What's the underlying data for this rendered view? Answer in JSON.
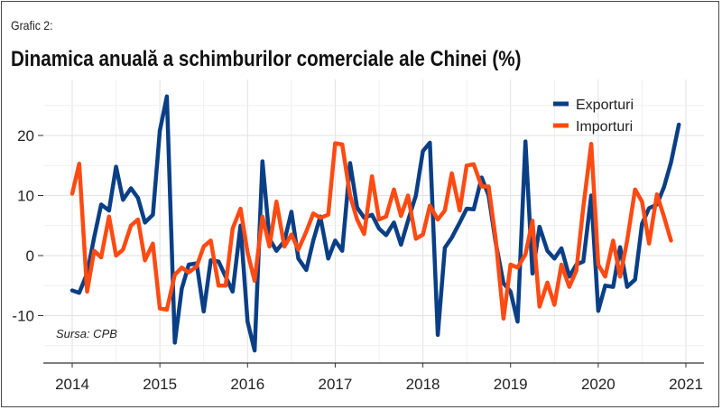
{
  "header": {
    "label": "Grafic 2:",
    "title": "Dinamica anuală a schimburilor comerciale ale Chinei (%)"
  },
  "source_note": "Sursa: CPB",
  "colors": {
    "exports": "#0a3f86",
    "imports": "#ff4a12",
    "grid": "#e2e2e2",
    "axis": "#333333"
  },
  "chart_data": {
    "type": "line",
    "title": "Dinamica anuală a schimburilor comerciale ale Chinei (%)",
    "xlabel": "",
    "ylabel": "",
    "xlim": [
      2014,
      2021
    ],
    "ylim": [
      -18,
      28
    ],
    "x_ticks": [
      2014,
      2015,
      2016,
      2017,
      2018,
      2019,
      2020,
      2021
    ],
    "y_ticks": [
      -10,
      0,
      10,
      20
    ],
    "grid": true,
    "legend_position": "top-right",
    "series": [
      {
        "name": "Exporturi",
        "color": "#0a3f86",
        "points": [
          [
            2014.0,
            -5.8
          ],
          [
            2014.08,
            -6.2
          ],
          [
            2014.17,
            -3.0
          ],
          [
            2014.25,
            3.0
          ],
          [
            2014.33,
            8.5
          ],
          [
            2014.42,
            7.5
          ],
          [
            2014.5,
            14.8
          ],
          [
            2014.58,
            9.3
          ],
          [
            2014.67,
            11.2
          ],
          [
            2014.75,
            9.6
          ],
          [
            2014.83,
            5.5
          ],
          [
            2014.92,
            6.8
          ],
          [
            2015.0,
            20.8
          ],
          [
            2015.08,
            26.5
          ],
          [
            2015.17,
            -14.5
          ],
          [
            2015.25,
            -5.5
          ],
          [
            2015.33,
            -1.5
          ],
          [
            2015.42,
            -1.3
          ],
          [
            2015.5,
            -9.3
          ],
          [
            2015.58,
            -0.8
          ],
          [
            2015.67,
            -1.0
          ],
          [
            2015.75,
            -3.5
          ],
          [
            2015.83,
            -6.0
          ],
          [
            2015.92,
            5.0
          ],
          [
            2016.0,
            -11.0
          ],
          [
            2016.08,
            -15.8
          ],
          [
            2016.17,
            15.7
          ],
          [
            2016.25,
            2.8
          ],
          [
            2016.33,
            0.8
          ],
          [
            2016.42,
            2.4
          ],
          [
            2016.5,
            7.3
          ],
          [
            2016.58,
            -0.5
          ],
          [
            2016.67,
            -2.4
          ],
          [
            2016.75,
            2.5
          ],
          [
            2016.83,
            6.5
          ],
          [
            2016.92,
            -0.5
          ],
          [
            2017.0,
            2.5
          ],
          [
            2017.08,
            0.8
          ],
          [
            2017.17,
            15.4
          ],
          [
            2017.25,
            8.0
          ],
          [
            2017.33,
            6.3
          ],
          [
            2017.42,
            6.8
          ],
          [
            2017.5,
            4.5
          ],
          [
            2017.58,
            3.4
          ],
          [
            2017.67,
            5.5
          ],
          [
            2017.75,
            1.8
          ],
          [
            2017.83,
            5.8
          ],
          [
            2017.92,
            10.0
          ],
          [
            2018.0,
            17.4
          ],
          [
            2018.08,
            18.8
          ],
          [
            2018.17,
            -13.2
          ],
          [
            2018.25,
            1.3
          ],
          [
            2018.33,
            3.0
          ],
          [
            2018.42,
            5.5
          ],
          [
            2018.5,
            7.8
          ],
          [
            2018.58,
            7.7
          ],
          [
            2018.67,
            13.0
          ],
          [
            2018.75,
            10.0
          ],
          [
            2018.83,
            2.2
          ],
          [
            2018.92,
            -4.6
          ],
          [
            2019.0,
            -6.0
          ],
          [
            2019.08,
            -11.0
          ],
          [
            2019.17,
            19.0
          ],
          [
            2019.25,
            -3.0
          ],
          [
            2019.33,
            4.8
          ],
          [
            2019.42,
            0.8
          ],
          [
            2019.5,
            -0.5
          ],
          [
            2019.58,
            1.2
          ],
          [
            2019.67,
            -3.5
          ],
          [
            2019.75,
            -1.5
          ],
          [
            2019.83,
            -1.0
          ],
          [
            2019.92,
            10.0
          ],
          [
            2020.0,
            -9.2
          ],
          [
            2020.08,
            -5.0
          ],
          [
            2020.17,
            -5.2
          ],
          [
            2020.25,
            1.4
          ],
          [
            2020.33,
            -5.2
          ],
          [
            2020.42,
            -4.0
          ],
          [
            2020.5,
            5.3
          ],
          [
            2020.58,
            7.9
          ],
          [
            2020.67,
            8.5
          ],
          [
            2020.75,
            11.4
          ],
          [
            2020.83,
            15.5
          ],
          [
            2020.92,
            21.8
          ]
        ]
      },
      {
        "name": "Importuri",
        "color": "#ff4a12",
        "points": [
          [
            2014.0,
            10.3
          ],
          [
            2014.08,
            15.3
          ],
          [
            2014.17,
            -6.0
          ],
          [
            2014.25,
            0.8
          ],
          [
            2014.33,
            -0.3
          ],
          [
            2014.42,
            6.5
          ],
          [
            2014.5,
            0.0
          ],
          [
            2014.58,
            1.0
          ],
          [
            2014.67,
            5.0
          ],
          [
            2014.75,
            6.0
          ],
          [
            2014.83,
            -0.8
          ],
          [
            2014.92,
            2.0
          ],
          [
            2015.0,
            -8.8
          ],
          [
            2015.08,
            -9.0
          ],
          [
            2015.17,
            -3.2
          ],
          [
            2015.25,
            -2.0
          ],
          [
            2015.33,
            -2.8
          ],
          [
            2015.42,
            -1.8
          ],
          [
            2015.5,
            1.5
          ],
          [
            2015.58,
            2.5
          ],
          [
            2015.67,
            -5.0
          ],
          [
            2015.75,
            -5.0
          ],
          [
            2015.83,
            4.5
          ],
          [
            2015.92,
            7.8
          ],
          [
            2016.0,
            0.5
          ],
          [
            2016.08,
            -4.2
          ],
          [
            2016.17,
            6.5
          ],
          [
            2016.25,
            1.5
          ],
          [
            2016.33,
            9.0
          ],
          [
            2016.42,
            1.5
          ],
          [
            2016.5,
            3.5
          ],
          [
            2016.58,
            1.0
          ],
          [
            2016.67,
            4.0
          ],
          [
            2016.75,
            7.0
          ],
          [
            2016.83,
            6.3
          ],
          [
            2016.92,
            6.8
          ],
          [
            2017.0,
            18.7
          ],
          [
            2017.08,
            18.5
          ],
          [
            2017.17,
            10.0
          ],
          [
            2017.25,
            6.0
          ],
          [
            2017.33,
            3.6
          ],
          [
            2017.42,
            13.2
          ],
          [
            2017.5,
            6.0
          ],
          [
            2017.58,
            6.5
          ],
          [
            2017.67,
            11.0
          ],
          [
            2017.75,
            6.6
          ],
          [
            2017.83,
            10.0
          ],
          [
            2017.92,
            2.8
          ],
          [
            2018.0,
            3.5
          ],
          [
            2018.08,
            8.3
          ],
          [
            2018.17,
            6.0
          ],
          [
            2018.25,
            7.5
          ],
          [
            2018.33,
            13.7
          ],
          [
            2018.42,
            7.5
          ],
          [
            2018.5,
            15.0
          ],
          [
            2018.58,
            15.2
          ],
          [
            2018.67,
            11.5
          ],
          [
            2018.75,
            11.5
          ],
          [
            2018.83,
            2.8
          ],
          [
            2018.92,
            -10.5
          ],
          [
            2019.0,
            -1.5
          ],
          [
            2019.08,
            -2.0
          ],
          [
            2019.17,
            0.2
          ],
          [
            2019.25,
            5.8
          ],
          [
            2019.33,
            -8.5
          ],
          [
            2019.42,
            -4.5
          ],
          [
            2019.5,
            -8.2
          ],
          [
            2019.58,
            -1.5
          ],
          [
            2019.67,
            -5.2
          ],
          [
            2019.75,
            -2.5
          ],
          [
            2019.83,
            8.0
          ],
          [
            2019.92,
            18.6
          ],
          [
            2020.0,
            -1.5
          ],
          [
            2020.08,
            -3.5
          ],
          [
            2020.17,
            2.5
          ],
          [
            2020.25,
            -3.5
          ],
          [
            2020.33,
            2.5
          ],
          [
            2020.42,
            11.0
          ],
          [
            2020.5,
            9.0
          ],
          [
            2020.58,
            2.0
          ],
          [
            2020.67,
            10.2
          ],
          [
            2020.75,
            6.5
          ],
          [
            2020.83,
            2.5
          ]
        ]
      }
    ]
  }
}
